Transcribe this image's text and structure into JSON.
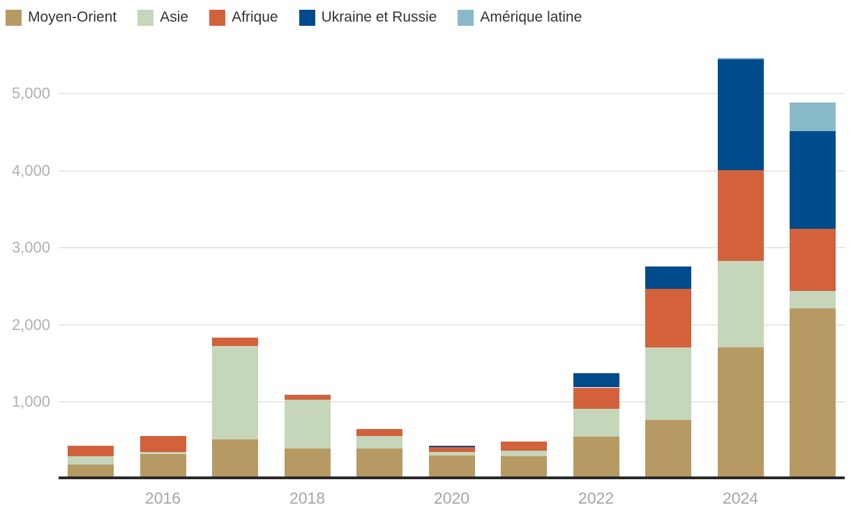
{
  "chart_data": {
    "type": "bar",
    "stacked": true,
    "categories": [
      "2015",
      "2016",
      "2017",
      "2018",
      "2019",
      "2020",
      "2021",
      "2022",
      "2023",
      "2024",
      "2025"
    ],
    "series": [
      {
        "name": "Moyen-Orient",
        "color": "#b79a63",
        "values": [
          185,
          325,
          515,
          395,
          390,
          300,
          295,
          545,
          765,
          1710,
          2210
        ]
      },
      {
        "name": "Asie",
        "color": "#c5d6bb",
        "values": [
          110,
          25,
          1205,
          635,
          165,
          50,
          70,
          365,
          945,
          1120,
          230
        ]
      },
      {
        "name": "Afrique",
        "color": "#d2613c",
        "values": [
          135,
          205,
          110,
          65,
          90,
          65,
          120,
          275,
          760,
          1175,
          805
        ]
      },
      {
        "name": "Ukraine et Russie",
        "color": "#004b8c",
        "values": [
          0,
          0,
          0,
          0,
          0,
          15,
          0,
          185,
          285,
          1435,
          1265
        ]
      },
      {
        "name": "Amérique latine",
        "color": "#88b9c9",
        "values": [
          0,
          0,
          0,
          0,
          0,
          0,
          0,
          0,
          0,
          25,
          370
        ]
      }
    ],
    "x_axis": {
      "ticks": [
        {
          "label": "2016",
          "category_index": 1
        },
        {
          "label": "2018",
          "category_index": 3
        },
        {
          "label": "2020",
          "category_index": 5
        },
        {
          "label": "2022",
          "category_index": 7
        },
        {
          "label": "2024",
          "category_index": 9
        }
      ]
    },
    "y_axis": {
      "range": [
        0,
        5500
      ],
      "grid": true,
      "ticks": [
        {
          "value": 1000,
          "label": "1,000"
        },
        {
          "value": 2000,
          "label": "2,000"
        },
        {
          "value": 3000,
          "label": "3,000"
        },
        {
          "value": 4000,
          "label": "4,000"
        },
        {
          "value": 5000,
          "label": "5,000"
        }
      ]
    },
    "legend_position": "top-left",
    "title": "",
    "xlabel": "",
    "ylabel": ""
  },
  "style": {
    "grid_color": "#e8e8e8",
    "axis_line_color": "#2a2a2a",
    "ytick_color": "#b0b0b0",
    "xtick_color": "#a6a6a6",
    "legend_text_color": "#333333"
  }
}
